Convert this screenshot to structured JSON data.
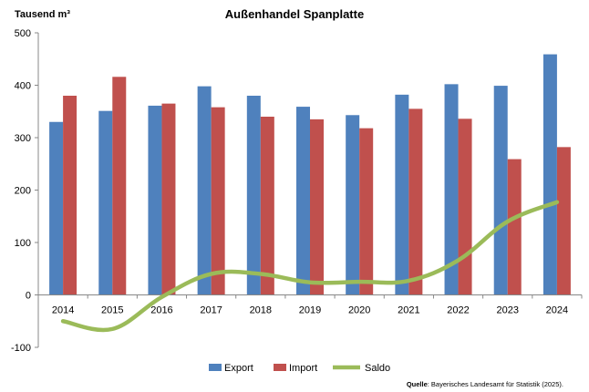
{
  "chart_data": {
    "type": "bar",
    "title": "Außenhandel Spanplatte",
    "ylabel": "Tausend m³",
    "xlabel": "",
    "ylim": [
      -100,
      500
    ],
    "yticks": [
      -100,
      0,
      100,
      200,
      300,
      400,
      500
    ],
    "grid": false,
    "legend": "bottom",
    "categories": [
      "2014",
      "2015",
      "2016",
      "2017",
      "2018",
      "2019",
      "2020",
      "2021",
      "2022",
      "2023",
      "2024"
    ],
    "series": [
      {
        "name": "Export",
        "type": "bar",
        "color": "#4f81bd",
        "values": [
          330,
          351,
          361,
          398,
          380,
          359,
          343,
          382,
          402,
          399,
          459
        ]
      },
      {
        "name": "Import",
        "type": "bar",
        "color": "#c0504d",
        "values": [
          380,
          416,
          365,
          358,
          340,
          335,
          318,
          355,
          336,
          259,
          282
        ]
      },
      {
        "name": "Saldo",
        "type": "line",
        "color": "#9bbb59",
        "values": [
          -50,
          -65,
          -4,
          40,
          40,
          24,
          25,
          27,
          66,
          140,
          177
        ]
      }
    ],
    "source_label": "Quelle",
    "source_text": ": Bayerisches Landesamt für Statistik (2025)."
  }
}
